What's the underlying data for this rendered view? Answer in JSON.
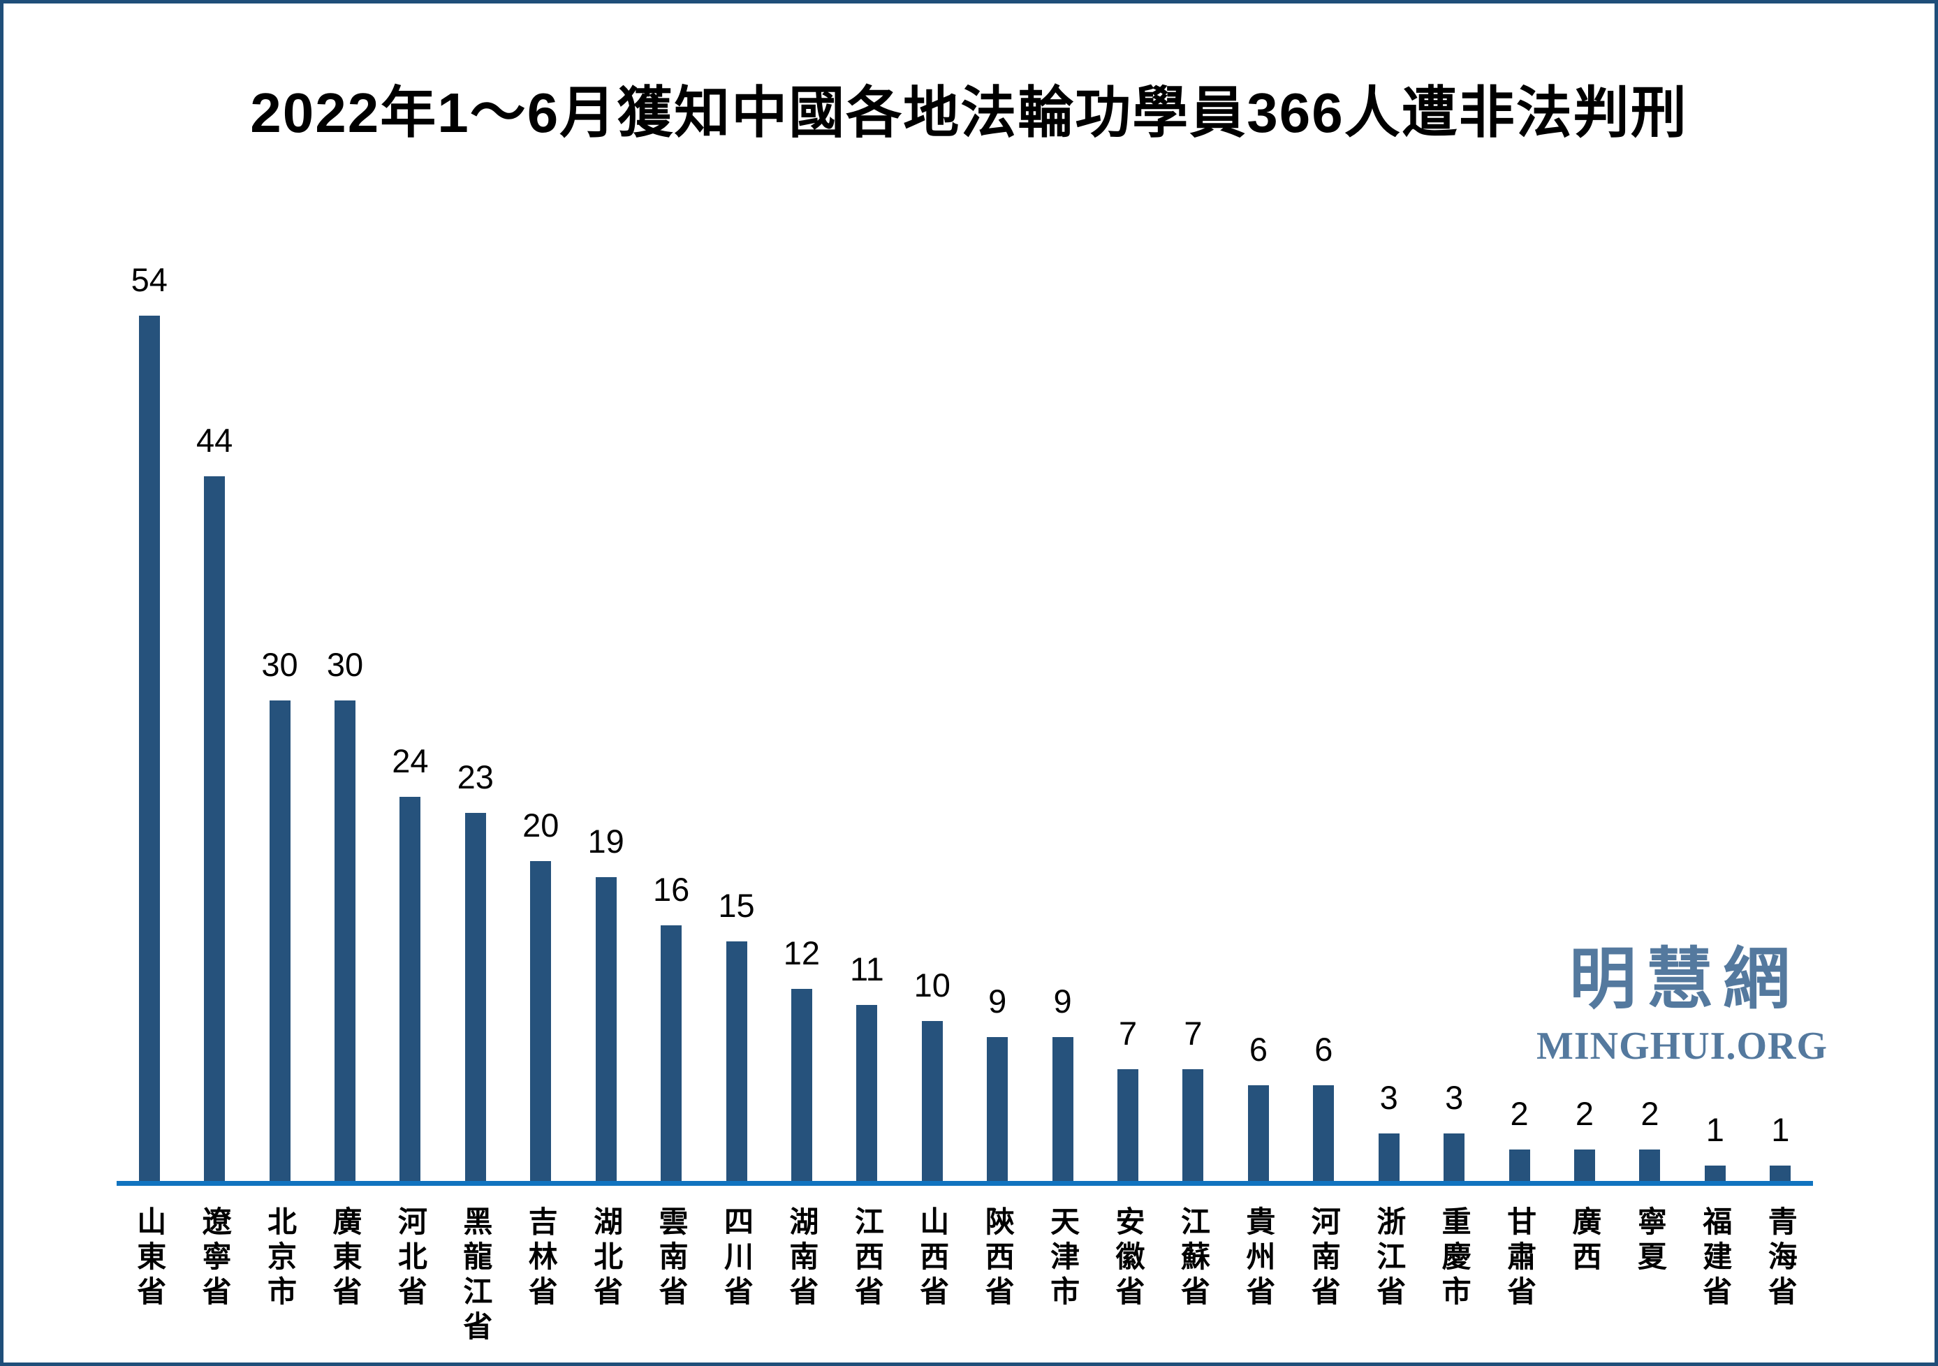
{
  "title": "2022年1～6月獲知中國各地法輪功學員366人遭非法判刑",
  "logo": {
    "chinese": "明慧網",
    "latin": "MINGHUI.ORG",
    "color": "#54799E"
  },
  "colors": {
    "bar": "#26527C",
    "axis_line": "#1173BF",
    "page_border": "#1F4E79",
    "background": "#FFFFFF",
    "text": "#000000"
  },
  "chart_data": {
    "type": "bar",
    "title": "2022年1～6月獲知中國各地法輪功學員366人遭非法判刑",
    "categories": [
      "山東省",
      "遼寧省",
      "北京市",
      "廣東省",
      "河北省",
      "黑龍江省",
      "吉林省",
      "湖北省",
      "雲南省",
      "四川省",
      "湖南省",
      "江西省",
      "山西省",
      "陝西省",
      "天津市",
      "安徽省",
      "江蘇省",
      "貴州省",
      "河南省",
      "浙江省",
      "重慶市",
      "甘肅省",
      "廣西",
      "寧夏",
      "福建省",
      "青海省"
    ],
    "values": [
      54,
      44,
      30,
      30,
      24,
      23,
      20,
      19,
      16,
      15,
      12,
      11,
      10,
      9,
      9,
      7,
      7,
      6,
      6,
      3,
      3,
      2,
      2,
      2,
      1,
      1
    ],
    "total": 366,
    "xlabel": "",
    "ylabel": "",
    "ylim": [
      0,
      54
    ],
    "grid": false,
    "legend": null,
    "value_labels_shown": true,
    "x_label_orientation": "vertical"
  }
}
